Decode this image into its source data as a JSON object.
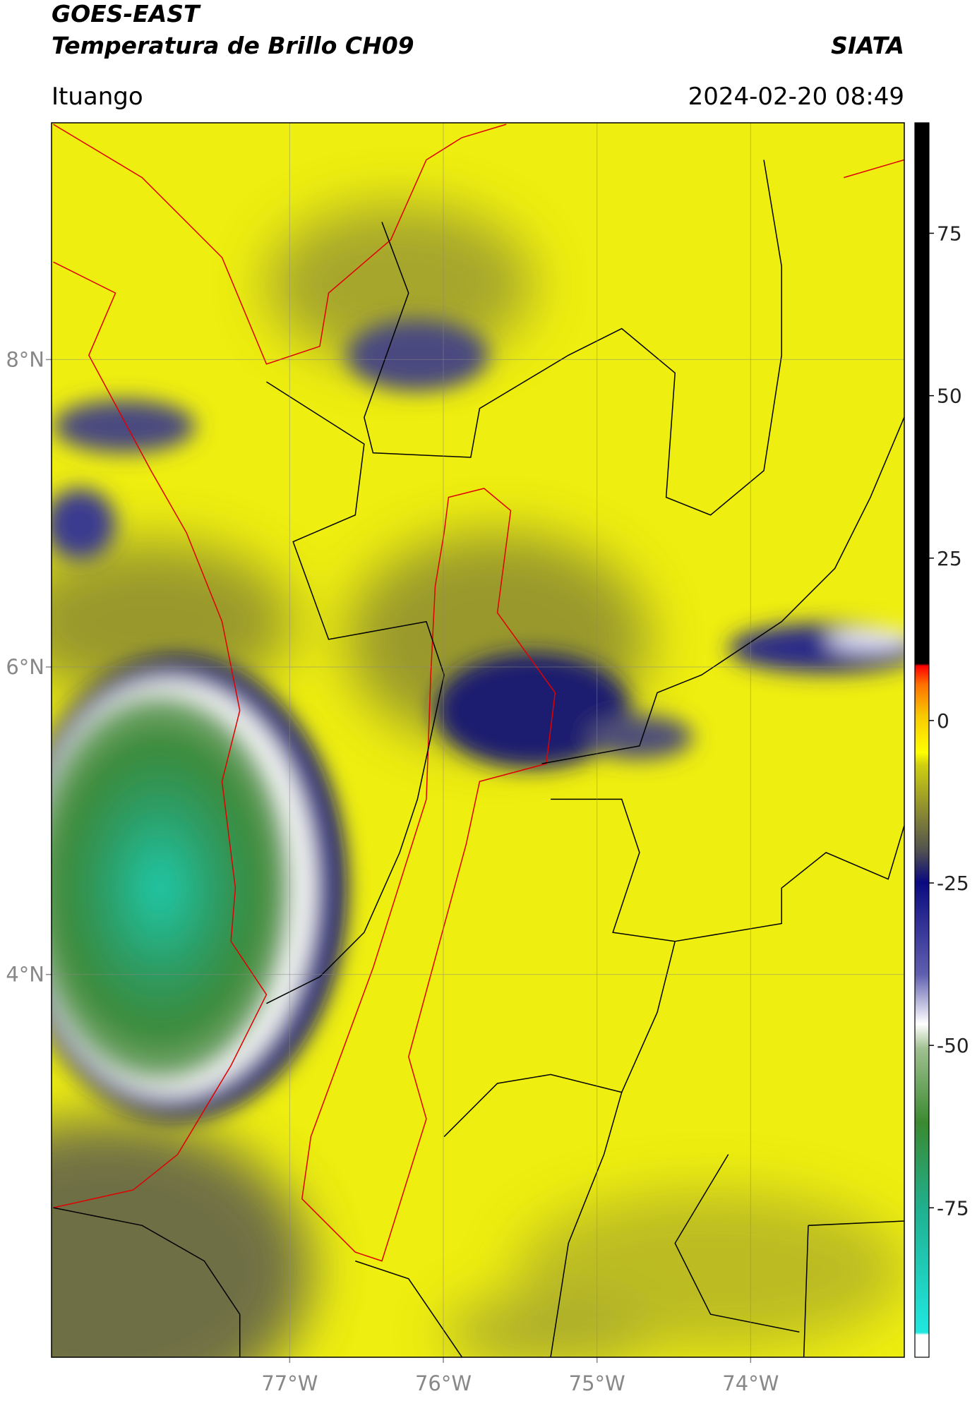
{
  "header": {
    "title_line1": "GOES-EAST",
    "title_line2": "Temperatura de Brillo CH09",
    "source": "SIATA",
    "location": "Ituango",
    "timestamp": "2024-02-20 08:49"
  },
  "map": {
    "lon_lim": [
      -78.55,
      -73.0
    ],
    "lat_lim": [
      1.51,
      9.54
    ],
    "lat_ticks": [
      {
        "value": 8,
        "label": "8°N"
      },
      {
        "value": 6,
        "label": "6°N"
      },
      {
        "value": 4,
        "label": "4°N"
      }
    ],
    "lon_ticks": [
      {
        "value": -77,
        "label": "77°W"
      },
      {
        "value": -76,
        "label": "76°W"
      },
      {
        "value": -75,
        "label": "75°W"
      },
      {
        "value": -74,
        "label": "74°W"
      }
    ]
  },
  "colorbar": {
    "lim": [
      -98,
      92
    ],
    "ticks": [
      75,
      50,
      25,
      0,
      -25,
      -50,
      -75
    ]
  }
}
